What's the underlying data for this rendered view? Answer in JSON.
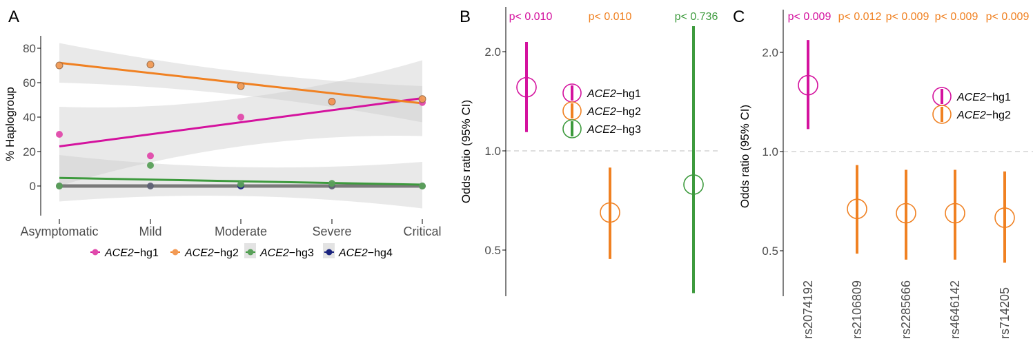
{
  "colors": {
    "hg1": "#d4129e",
    "hg1_point": "#e04aab",
    "hg2": "#f08122",
    "hg2_point": "#f29a55",
    "hg3": "#3d9a3d",
    "hg3_point": "#5aa05a",
    "hg4": "#1a237e",
    "hg4_line": "#7a7a7a",
    "ribbon": "#e3e3e3",
    "refline": "#bdbdbd"
  },
  "chart_data": [
    {
      "panel": "A",
      "type": "scatter",
      "title": "",
      "xlabel": "",
      "ylabel": "% Haplogroup",
      "categories": [
        "Asymptomatic",
        "Mild",
        "Moderate",
        "Severe",
        "Critical"
      ],
      "yticks": [
        0,
        20,
        40,
        60,
        80
      ],
      "ylim": [
        -17,
        88
      ],
      "grid": false,
      "legend_position": "bottom",
      "series": [
        {
          "key": "hg1",
          "name_italic": "ACE2",
          "name_suffix": "−hg1",
          "values": [
            30,
            17.5,
            40,
            49,
            48.5
          ],
          "fit": [
            23,
            51
          ],
          "ci_lower": [
            0,
            29
          ],
          "ci_upper": [
            46,
            73
          ]
        },
        {
          "key": "hg2",
          "name_italic": "ACE2",
          "name_suffix": "−hg2",
          "values": [
            70,
            70.5,
            58,
            49,
            50.5
          ],
          "fit": [
            71.5,
            48
          ],
          "ci_lower": [
            60,
            37
          ],
          "ci_upper": [
            83,
            58
          ]
        },
        {
          "key": "hg3",
          "name_italic": "ACE2",
          "name_suffix": "−hg3",
          "values": [
            0,
            12,
            1,
            1.5,
            0
          ],
          "fit": [
            4.7,
            0.8
          ],
          "ci_lower": [
            -9,
            -13
          ],
          "ci_upper": [
            18,
            14
          ]
        },
        {
          "key": "hg4",
          "name_italic": "ACE2",
          "name_suffix": "−hg4",
          "values": [
            0,
            0,
            0,
            0,
            0
          ],
          "fit": [
            0,
            0
          ],
          "ci_lower": [
            0,
            0
          ],
          "ci_upper": [
            0,
            0
          ]
        }
      ]
    },
    {
      "panel": "B",
      "type": "scatter",
      "subtype": "forest",
      "ylabel": "Odds ratio (95% CI)",
      "yscale": "log",
      "yticks": [
        "0.5",
        "1.0",
        "2.0"
      ],
      "ylim": [
        0.36,
        2.55
      ],
      "reference_line": 1.0,
      "legend_position": "center",
      "points": [
        {
          "key": "hg1",
          "label": "ACE2−hg1",
          "or": 1.56,
          "ci_low": 1.14,
          "ci_high": 2.14,
          "p_label": "p< 0.010"
        },
        {
          "key": "hg2",
          "label": "ACE2−hg2",
          "or": 0.65,
          "ci_low": 0.47,
          "ci_high": 0.89,
          "p_label": "p< 0.010"
        },
        {
          "key": "hg3",
          "label": "ACE2−hg3",
          "or": 0.79,
          "ci_low": 0.37,
          "ci_high": 2.39,
          "p_label": "p< 0.736"
        }
      ],
      "legend": [
        {
          "key": "hg1",
          "name_italic": "ACE2",
          "name_suffix": "−hg1"
        },
        {
          "key": "hg2",
          "name_italic": "ACE2",
          "name_suffix": "−hg2"
        },
        {
          "key": "hg3",
          "name_italic": "ACE2",
          "name_suffix": "−hg3"
        }
      ]
    },
    {
      "panel": "C",
      "type": "scatter",
      "subtype": "forest",
      "ylabel": "Odds ratio (95% CI)",
      "yscale": "log",
      "yticks": [
        "0.5",
        "1.0",
        "2.0"
      ],
      "ylim": [
        0.36,
        2.55
      ],
      "reference_line": 1.0,
      "legend_position": "right",
      "points": [
        {
          "key": "hg1",
          "label": "rs2074192",
          "or": 1.59,
          "ci_low": 1.17,
          "ci_high": 2.18,
          "p_label": "p< 0.009"
        },
        {
          "key": "hg2",
          "label": "rs2106809",
          "or": 0.67,
          "ci_low": 0.49,
          "ci_high": 0.91,
          "p_label": "p< 0.012"
        },
        {
          "key": "hg2",
          "label": "rs2285666",
          "or": 0.65,
          "ci_low": 0.47,
          "ci_high": 0.88,
          "p_label": "p< 0.009"
        },
        {
          "key": "hg2",
          "label": "rs4646142",
          "or": 0.65,
          "ci_low": 0.47,
          "ci_high": 0.88,
          "p_label": "p< 0.009"
        },
        {
          "key": "hg2",
          "label": "rs714205",
          "or": 0.63,
          "ci_low": 0.46,
          "ci_high": 0.87,
          "p_label": "p< 0.009"
        }
      ],
      "legend": [
        {
          "key": "hg1",
          "name_italic": "ACE2",
          "name_suffix": "−hg1"
        },
        {
          "key": "hg2",
          "name_italic": "ACE2",
          "name_suffix": "−hg2"
        }
      ]
    }
  ],
  "panels": {
    "a_letter": "A",
    "b_letter": "B",
    "c_letter": "C"
  }
}
